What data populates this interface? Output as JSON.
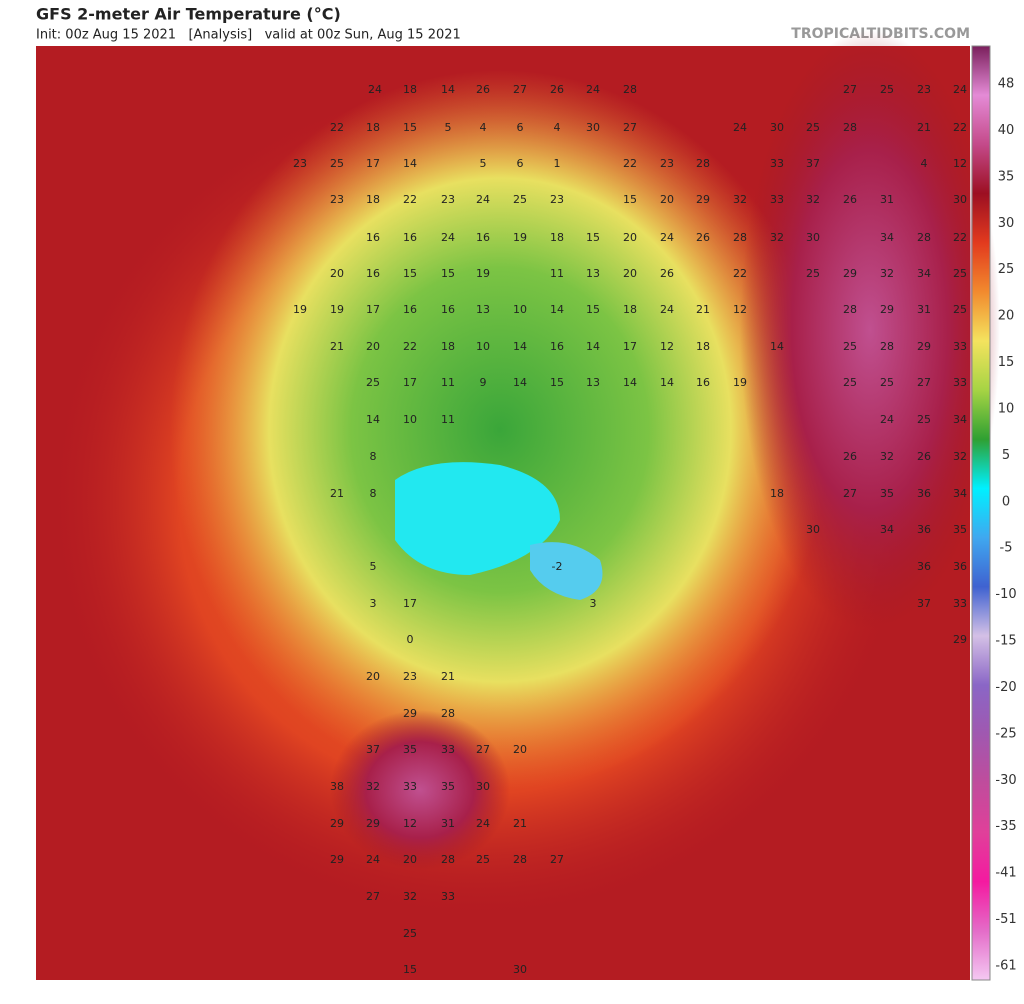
{
  "header": {
    "title": "GFS 2-meter Air Temperature (°C)",
    "subtitle": "Init: 00z Aug 15 2021   [Analysis]   valid at 00z Sun, Aug 15 2021",
    "source": "TROPICALTIDBITS.COM"
  },
  "colorbar": {
    "ticks": [
      48,
      40,
      35,
      30,
      25,
      20,
      15,
      10,
      5,
      0,
      -5,
      -10,
      -15,
      -20,
      -25,
      -30,
      -35,
      -41,
      -51,
      -61
    ],
    "colors": [
      "#7a1f5c",
      "#e48bd6",
      "#c44a8a",
      "#9c0f22",
      "#e23a1e",
      "#f28a2e",
      "#f4e35e",
      "#a6d444",
      "#2fa032",
      "#00f0ff",
      "#3fa8f0",
      "#3f62d0",
      "#d4c0e6",
      "#8a66c6",
      "#a058b0",
      "#c04c9c",
      "#e0409a",
      "#f41aa0",
      "#e46cc8",
      "#f4c8f2"
    ]
  },
  "map_labels": [
    [
      24,
      18,
      14,
      26,
      27,
      26,
      24,
      28,
      27,
      25,
      23,
      24
    ],
    [
      22,
      18,
      15,
      5,
      4,
      6,
      4,
      30,
      27,
      24,
      30,
      25,
      28,
      21,
      22
    ],
    [
      23,
      25,
      17,
      14,
      5,
      6,
      1,
      22,
      23,
      28,
      33,
      37,
      4,
      12
    ],
    [
      23,
      18,
      22,
      23,
      24,
      25,
      23,
      15,
      20,
      29,
      32,
      33,
      32,
      26,
      31,
      30
    ],
    [
      16,
      16,
      24,
      16,
      19,
      18,
      15,
      20,
      24,
      26,
      28,
      32,
      30,
      34,
      28,
      22
    ],
    [
      20,
      16,
      15,
      15,
      19,
      11,
      13,
      20,
      26,
      22,
      25,
      29,
      32,
      34,
      25
    ],
    [
      19,
      19,
      17,
      16,
      16,
      13,
      10,
      14,
      15,
      18,
      24,
      21,
      12,
      28,
      29,
      31,
      25
    ],
    [
      21,
      20,
      22,
      18,
      10,
      14,
      16,
      14,
      17,
      12,
      18,
      14,
      25,
      28,
      29,
      33
    ],
    [
      25,
      17,
      11,
      9,
      14,
      15,
      13,
      14,
      14,
      16,
      19,
      25,
      25,
      27,
      33
    ],
    [
      14,
      10,
      11,
      24,
      25,
      34
    ],
    [
      8,
      26,
      32,
      26,
      32
    ],
    [
      21,
      8,
      18,
      27,
      35,
      36,
      34
    ],
    [
      30,
      34,
      36,
      35
    ],
    [
      5,
      -2,
      36,
      36
    ],
    [
      3,
      17,
      3,
      37,
      33
    ],
    [
      0,
      29
    ],
    [
      20,
      23,
      21
    ],
    [
      29,
      28
    ],
    [
      37,
      35,
      33,
      27,
      20
    ],
    [
      38,
      32,
      33,
      35,
      30
    ],
    [
      29,
      29,
      12,
      31,
      24,
      21
    ],
    [
      29,
      24,
      20,
      28,
      25,
      28,
      27
    ],
    [
      27,
      32,
      33
    ],
    [
      25
    ],
    [
      15,
      30
    ]
  ]
}
